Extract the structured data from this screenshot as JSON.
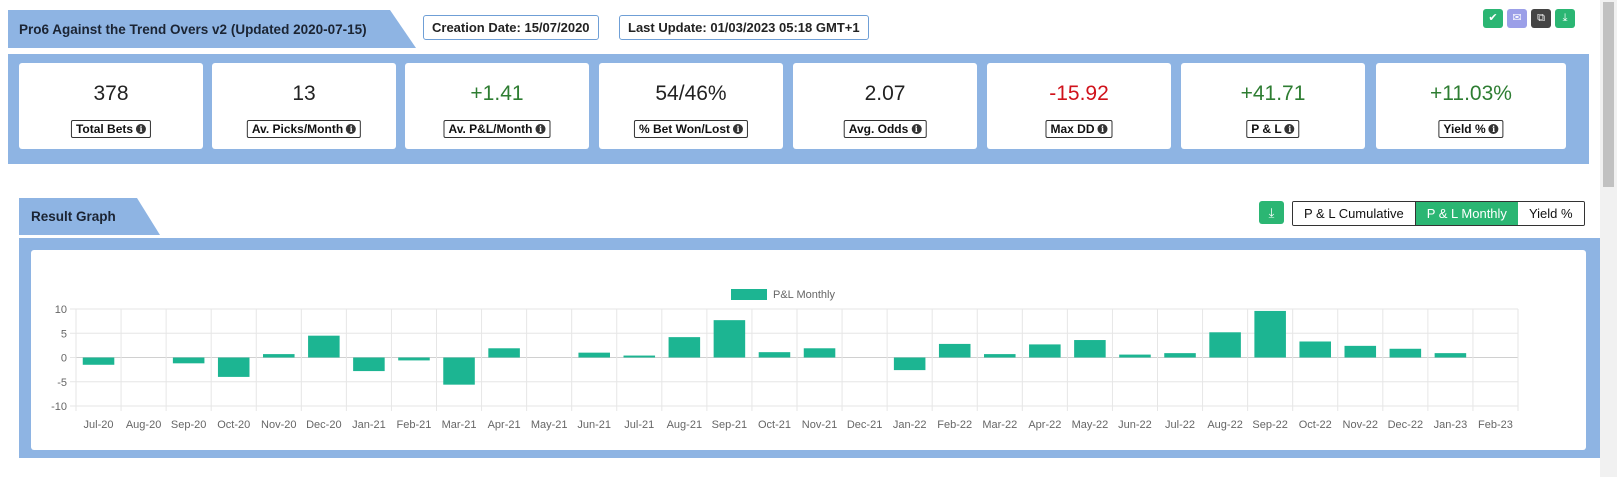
{
  "header": {
    "title": "Pro6 Against the Trend Overs v2 (Updated 2020-07-15)",
    "creation_date": "Creation Date: 15/07/2020",
    "last_update": "Last Update: 01/03/2023 05:18 GMT+1"
  },
  "header_icons": [
    {
      "name": "check-icon",
      "glyph": "✔",
      "color": "#2bb673"
    },
    {
      "name": "mail-icon",
      "glyph": "✉",
      "color": "#9b9fe8"
    },
    {
      "name": "copy-icon",
      "glyph": "⧉",
      "color": "#444444"
    },
    {
      "name": "download-icon",
      "glyph": "⤓",
      "color": "#2bb673"
    }
  ],
  "stats": [
    {
      "value": "378",
      "label": "Total Bets",
      "tone": ""
    },
    {
      "value": "13",
      "label": "Av. Picks/Month",
      "tone": ""
    },
    {
      "value": "+1.41",
      "label": "Av. P&L/Month",
      "tone": "pos"
    },
    {
      "value": "54/46%",
      "label": "% Bet Won/Lost",
      "tone": ""
    },
    {
      "value": "2.07",
      "label": "Avg. Odds",
      "tone": ""
    },
    {
      "value": "-15.92",
      "label": "Max DD",
      "tone": "neg"
    },
    {
      "value": "+41.71",
      "label": "P & L",
      "tone": "pos"
    },
    {
      "value": "+11.03%",
      "label": "Yield %",
      "tone": "pos"
    }
  ],
  "graph": {
    "title": "Result Graph",
    "toggles": [
      {
        "label": "P & L Cumulative",
        "active": false
      },
      {
        "label": "P & L Monthly",
        "active": true
      },
      {
        "label": "Yield %",
        "active": false
      }
    ]
  },
  "chart_data": {
    "type": "bar",
    "legend": "P&L Monthly",
    "legend_position": "top",
    "bar_color": "#1cb592",
    "grid": true,
    "ylim": [
      -10,
      10
    ],
    "yticks": [
      "10",
      "5",
      "0",
      "-5",
      "-10"
    ],
    "categories": [
      "Jul-20",
      "Aug-20",
      "Sep-20",
      "Oct-20",
      "Nov-20",
      "Dec-20",
      "Jan-21",
      "Feb-21",
      "Mar-21",
      "Apr-21",
      "May-21",
      "Jun-21",
      "Jul-21",
      "Aug-21",
      "Sep-21",
      "Oct-21",
      "Nov-21",
      "Dec-21",
      "Jan-22",
      "Feb-22",
      "Mar-22",
      "Apr-22",
      "May-22",
      "Jun-22",
      "Jul-22",
      "Aug-22",
      "Sep-22",
      "Oct-22",
      "Nov-22",
      "Dec-22",
      "Jan-23",
      "Feb-23"
    ],
    "series": [
      {
        "name": "P&L Monthly",
        "values": [
          -1.5,
          0,
          -1.2,
          -4.0,
          0.7,
          4.5,
          -2.8,
          -0.6,
          -5.6,
          1.9,
          0,
          1.0,
          0.4,
          4.2,
          7.7,
          1.1,
          1.9,
          0,
          -2.6,
          2.8,
          0.7,
          2.7,
          3.6,
          0.6,
          0.9,
          5.2,
          9.6,
          3.3,
          2.4,
          1.8,
          0.9,
          0
        ]
      }
    ]
  }
}
